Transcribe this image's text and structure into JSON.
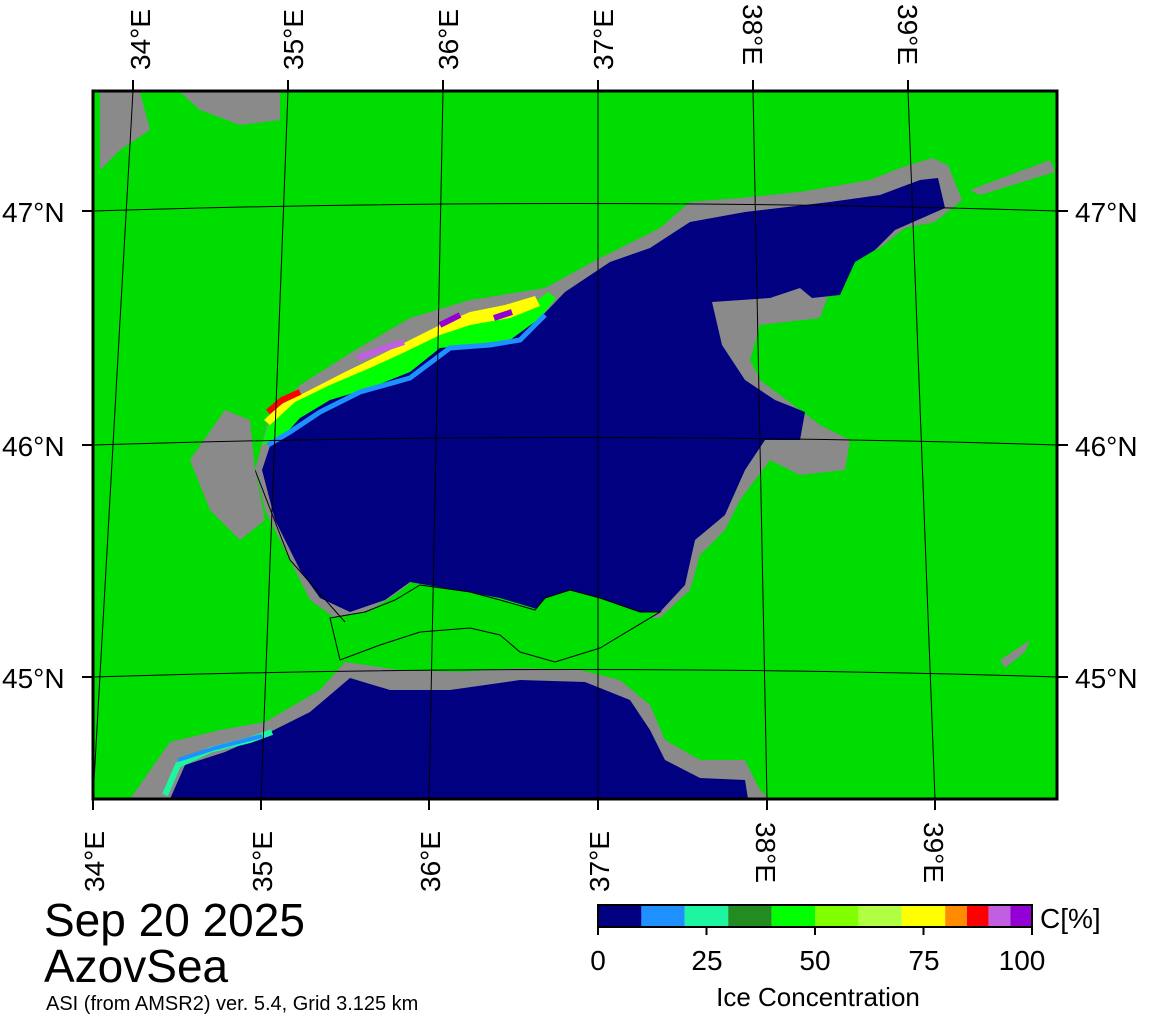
{
  "title": {
    "date": "Sep 20 2025",
    "region": "AzovSea",
    "source": "ASI (from AMSR2) ver. 5.4,  Grid 3.125 km"
  },
  "map": {
    "top_lon_labels": [
      "34°E",
      "35°E",
      "36°E",
      "37°E",
      "38°E",
      "39°E"
    ],
    "bottom_lon_labels": [
      "34°E",
      "35°E",
      "36°E",
      "37°E",
      "38°E",
      "39°E"
    ],
    "left_lat_labels": [
      "47°N",
      "46°N",
      "45°N"
    ],
    "right_lat_labels": [
      "47°N",
      "46°N",
      "45°N"
    ],
    "colors": {
      "land": "#00dd00",
      "coast_mask": "#8a8a8a",
      "open_water": "#000080",
      "frame": "#000000",
      "graticule": "#000000"
    }
  },
  "colorbar": {
    "unit_label": "C[%]",
    "title": "Ice Concentration",
    "tick_labels": [
      "0",
      "25",
      "50",
      "75",
      "100"
    ],
    "segments": [
      {
        "from": 0,
        "to": 10,
        "color": "#000080"
      },
      {
        "from": 10,
        "to": 20,
        "color": "#1e90ff"
      },
      {
        "from": 20,
        "to": 30,
        "color": "#1ef5a0"
      },
      {
        "from": 30,
        "to": 40,
        "color": "#228b22"
      },
      {
        "from": 40,
        "to": 50,
        "color": "#00ff00"
      },
      {
        "from": 50,
        "to": 60,
        "color": "#80ff00"
      },
      {
        "from": 60,
        "to": 70,
        "color": "#b0ff40"
      },
      {
        "from": 70,
        "to": 80,
        "color": "#ffff00"
      },
      {
        "from": 80,
        "to": 85,
        "color": "#ff8c00"
      },
      {
        "from": 85,
        "to": 90,
        "color": "#ff0000"
      },
      {
        "from": 90,
        "to": 95,
        "color": "#c060e0"
      },
      {
        "from": 95,
        "to": 100,
        "color": "#9400d3"
      }
    ]
  }
}
